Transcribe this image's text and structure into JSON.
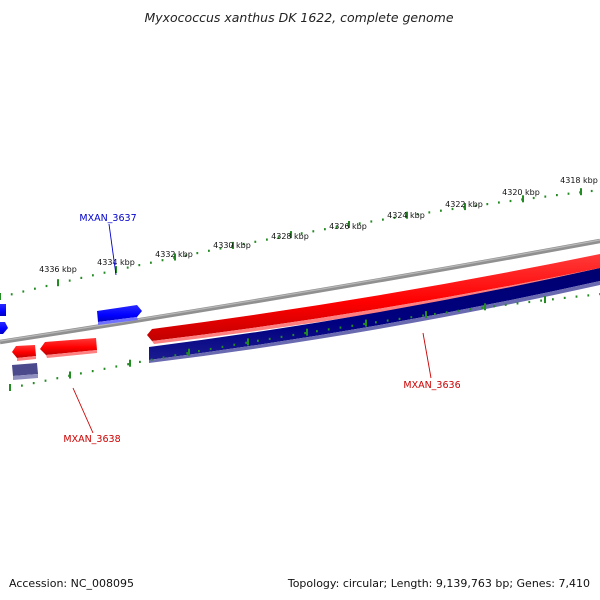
{
  "title": "Myxococcus xanthus DK 1622, complete genome",
  "footer": {
    "accession": "Accession: NC_008095",
    "summary": "Topology: circular; Length: 9,139,763 bp; Genes: 7,410"
  },
  "ticks": [
    {
      "label": "4318 kbp"
    },
    {
      "label": "4320 kbp"
    },
    {
      "label": "4322 kbp"
    },
    {
      "label": "4324 kbp"
    },
    {
      "label": "4326 kbp"
    },
    {
      "label": "4328 kbp"
    },
    {
      "label": "4330 kbp"
    },
    {
      "label": "4332 kbp"
    },
    {
      "label": "4334 kbp"
    },
    {
      "label": "4336 kbp"
    }
  ],
  "genes": [
    {
      "name": "MXAN_3636",
      "color": "#cc0000"
    },
    {
      "name": "MXAN_3637",
      "color": "#0000cc"
    },
    {
      "name": "MXAN_3638",
      "color": "#cc0000"
    }
  ],
  "colors": {
    "backbone": "#808080",
    "forward_strand": "#ff0000",
    "reverse_strand": "#000080",
    "blue_feature": "#0000ff",
    "tick": "#228b22"
  }
}
